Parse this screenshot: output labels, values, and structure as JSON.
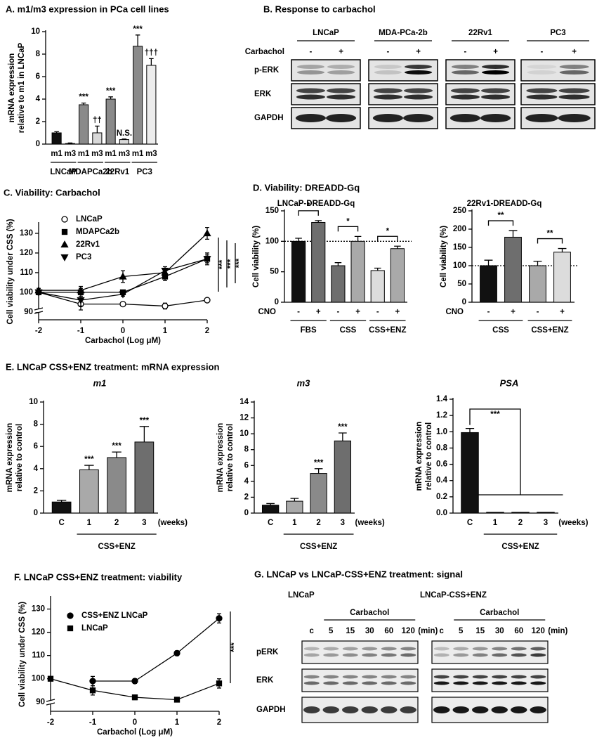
{
  "headings": {
    "D": "D. Viability: DREADD-Gq",
    "E": "E. LNCaP CSS+ENZ treatment: mRNA expression"
  },
  "blots": {
    "B": {
      "title": "B. Response to carbachol",
      "cell_lines": [
        "LNCaP",
        "MDA-PCa-2b",
        "22Rv1",
        "PC3"
      ],
      "treatment_label": "Carbachol",
      "treatment": [
        "-",
        "+"
      ],
      "rows": [
        "p-ERK",
        "ERK",
        "GAPDH"
      ]
    },
    "G": {
      "title": "G. LNCaP vs LNCaP-CSS+ENZ treatment: signal",
      "cell_lines": [
        "LNCaP",
        "LNCaP-CSS+ENZ"
      ],
      "treatment_label": "Carbachol",
      "lanes": [
        "c",
        "5",
        "15",
        "30",
        "60",
        "120"
      ],
      "unit": "(min)",
      "rows": [
        "pERK",
        "ERK",
        "GAPDH"
      ]
    }
  },
  "chart_data": [
    {
      "type": "bar",
      "title": "A. m1/m3 expression in PCa cell lines",
      "y_label": [
        "mRNA expression",
        "relative to m1 in LNCaP"
      ],
      "categories": [
        "m1",
        "m3",
        "m1",
        "m3",
        "m1",
        "m3",
        "m1",
        "m3"
      ],
      "groups": [
        "LNCaP",
        "MDAPCa2b",
        "22Rv1",
        "PC3"
      ],
      "values": [
        1.0,
        0.05,
        3.5,
        1.0,
        4.0,
        0.4,
        8.7,
        7.0
      ],
      "errors": [
        0.1,
        0.05,
        0.15,
        0.6,
        0.2,
        0.05,
        1.0,
        0.6
      ],
      "colors": [
        "#111111",
        "#ffffff",
        "#8a8a8a",
        "#d8d8d8",
        "#8a8a8a",
        "#d8d8d8",
        "#8a8a8a",
        "#ececec"
      ],
      "annotations": [
        null,
        null,
        "***",
        "††",
        "***",
        "N.S.",
        "***",
        "†††"
      ],
      "ylim": [
        0,
        10
      ],
      "yticks": [
        0,
        2,
        4,
        6,
        8,
        10
      ]
    },
    {
      "type": "line",
      "title": "C. Viability: Carbachol",
      "y_label": "Cell viability under CSS (%)",
      "x_label": "Carbachol (Log μM)",
      "x": [
        -2,
        -1,
        0,
        1,
        2
      ],
      "series": [
        {
          "name": "LNCaP",
          "marker": "circle-open",
          "color": "#000000",
          "values": [
            100,
            94,
            94,
            93,
            96
          ],
          "errors": [
            1,
            3,
            1,
            1.5,
            1
          ]
        },
        {
          "name": "MDAPCa2b",
          "marker": "square",
          "color": "#000000",
          "values": [
            100,
            100,
            100,
            108,
            117
          ],
          "errors": [
            1,
            2,
            1,
            2,
            2
          ]
        },
        {
          "name": "22Rv1",
          "marker": "triangle",
          "color": "#000000",
          "values": [
            101,
            101,
            108,
            110,
            130
          ],
          "errors": [
            1,
            2,
            3,
            2,
            3
          ]
        },
        {
          "name": "PC3",
          "marker": "triangle-down",
          "color": "#000000",
          "values": [
            100,
            96,
            99,
            111,
            117
          ],
          "errors": [
            1,
            3,
            1,
            2,
            3
          ]
        }
      ],
      "significance": [
        "***",
        "***",
        "***"
      ],
      "xlim": [
        -2,
        2
      ],
      "xticks": [
        -2,
        -1,
        0,
        1,
        2
      ],
      "ylim": [
        86,
        135
      ],
      "yticks": [
        90,
        100,
        110,
        120,
        130
      ]
    },
    {
      "type": "bar",
      "title": "LNCaP-DREADD-Gq",
      "y_label": "Cell viability (%)",
      "category_title": "CNO",
      "categories": [
        "-",
        "+",
        "-",
        "+",
        "-",
        "+"
      ],
      "groups": [
        "FBS",
        "CSS",
        "CSS+ENZ"
      ],
      "values": [
        100,
        131,
        60,
        100,
        52,
        88
      ],
      "errors": [
        5,
        3,
        5,
        8,
        4,
        4
      ],
      "colors": [
        "#111111",
        "#6e6e6e",
        "#6e6e6e",
        "#a9a9a9",
        "#dcdcdc",
        "#a9a9a9"
      ],
      "significance": [
        "*",
        "*",
        "*"
      ],
      "reference_line": 100,
      "ylim": [
        0,
        150
      ],
      "yticks": [
        0,
        50,
        100,
        150
      ]
    },
    {
      "type": "bar",
      "title": "22Rv1-DREADD-Gq",
      "y_label": "Cell viability (%)",
      "category_title": "CNO",
      "categories": [
        "-",
        "+",
        "-",
        "+"
      ],
      "groups": [
        "CSS",
        "CSS+ENZ"
      ],
      "values": [
        100,
        178,
        100,
        137
      ],
      "errors": [
        15,
        18,
        12,
        10
      ],
      "colors": [
        "#111111",
        "#6e6e6e",
        "#a9a9a9",
        "#dcdcdc"
      ],
      "significance": [
        "**",
        "**"
      ],
      "reference_line": 100,
      "ylim": [
        0,
        250
      ],
      "yticks": [
        0,
        50,
        100,
        150,
        200,
        250
      ]
    },
    {
      "type": "bar",
      "title": "m1",
      "y_label": [
        "mRNA expression",
        "relative to control"
      ],
      "categories": [
        "C",
        "1",
        "2",
        "3"
      ],
      "x_unit": "(weeks)",
      "group_label": "CSS+ENZ",
      "values": [
        1.0,
        3.9,
        5.0,
        6.4
      ],
      "errors": [
        0.15,
        0.4,
        0.5,
        1.4
      ],
      "colors": [
        "#111111",
        "#a9a9a9",
        "#8a8a8a",
        "#6e6e6e"
      ],
      "annotations": [
        null,
        "***",
        "***",
        "***"
      ],
      "ylim": [
        0,
        10
      ],
      "yticks": [
        0,
        2,
        4,
        6,
        8,
        10
      ]
    },
    {
      "type": "bar",
      "title": "m3",
      "y_label": [
        "mRNA expression",
        "relative to control"
      ],
      "categories": [
        "C",
        "1",
        "2",
        "3"
      ],
      "x_unit": "(weeks)",
      "group_label": "CSS+ENZ",
      "values": [
        1.0,
        1.5,
        5.0,
        9.1
      ],
      "errors": [
        0.2,
        0.35,
        0.6,
        1.0
      ],
      "colors": [
        "#111111",
        "#a9a9a9",
        "#8a8a8a",
        "#6e6e6e"
      ],
      "annotations": [
        null,
        null,
        "***",
        "***"
      ],
      "ylim": [
        0,
        14
      ],
      "yticks": [
        0,
        2,
        4,
        6,
        8,
        10,
        12,
        14
      ]
    },
    {
      "type": "bar",
      "title": "PSA",
      "y_label": [
        "mRNA expression",
        "relative to control"
      ],
      "categories": [
        "C",
        "1",
        "2",
        "3"
      ],
      "x_unit": "(weeks)",
      "group_label": "CSS+ENZ",
      "values": [
        0.99,
        0.01,
        0.01,
        0.01
      ],
      "errors": [
        0.05,
        0,
        0,
        0
      ],
      "colors": [
        "#111111",
        "#111111",
        "#111111",
        "#111111"
      ],
      "significance": "***",
      "ylim": [
        0,
        1.4
      ],
      "yticks": [
        {
          "value": 0,
          "label": "0.0"
        },
        0.2,
        0.4,
        0.6,
        0.8,
        {
          "value": 1,
          "label": "1.0"
        },
        1.2,
        1.4
      ]
    },
    {
      "type": "line",
      "title": "F. LNCaP CSS+ENZ treatment: viability",
      "y_label": "Cell viability under CSS (%)",
      "x_label": "Carbachol (Log μM)",
      "x": [
        -2,
        -1,
        0,
        1,
        2
      ],
      "series": [
        {
          "name": "CSS+ENZ LNCaP",
          "marker": "circle",
          "color": "#000000",
          "values": [
            null,
            99,
            99,
            111,
            126
          ],
          "errors": [
            null,
            2,
            1,
            1,
            2
          ]
        },
        {
          "name": "LNCaP",
          "marker": "square",
          "color": "#000000",
          "values": [
            100,
            95,
            92,
            91,
            98
          ],
          "errors": [
            0,
            2,
            1,
            0,
            2
          ]
        }
      ],
      "significance": [
        "***"
      ],
      "xlim": [
        -2,
        2
      ],
      "xticks": [
        -2,
        -1,
        0,
        1,
        2
      ],
      "ylim": [
        86,
        135
      ],
      "yticks": [
        90,
        100,
        110,
        120,
        130
      ]
    }
  ]
}
